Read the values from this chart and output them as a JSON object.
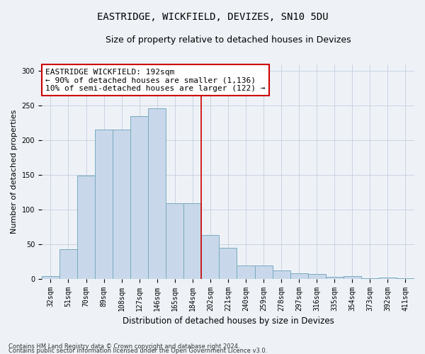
{
  "title": "EASTRIDGE, WICKFIELD, DEVIZES, SN10 5DU",
  "subtitle": "Size of property relative to detached houses in Devizes",
  "xlabel": "Distribution of detached houses by size in Devizes",
  "ylabel": "Number of detached properties",
  "footnote1": "Contains HM Land Registry data © Crown copyright and database right 2024.",
  "footnote2": "Contains public sector information licensed under the Open Government Licence v3.0.",
  "categories": [
    "32sqm",
    "51sqm",
    "70sqm",
    "89sqm",
    "108sqm",
    "127sqm",
    "146sqm",
    "165sqm",
    "184sqm",
    "202sqm",
    "221sqm",
    "240sqm",
    "259sqm",
    "278sqm",
    "297sqm",
    "316sqm",
    "335sqm",
    "354sqm",
    "373sqm",
    "392sqm",
    "411sqm"
  ],
  "values": [
    4,
    43,
    149,
    215,
    215,
    235,
    246,
    109,
    109,
    63,
    45,
    19,
    19,
    12,
    8,
    7,
    3,
    4,
    1,
    2,
    1
  ],
  "bar_color": "#c8d8ea",
  "bar_edge_color": "#7aaabf",
  "vline_x_index": 8,
  "vline_color": "#cc0000",
  "annotation_text": "EASTRIDGE WICKFIELD: 192sqm\n← 90% of detached houses are smaller (1,136)\n10% of semi-detached houses are larger (122) →",
  "annotation_box_color": "white",
  "annotation_box_edge_color": "#cc0000",
  "bg_color": "#eef2f7",
  "grid_color": "#c5cfe0",
  "ylim": [
    0,
    310
  ],
  "yticks": [
    0,
    50,
    100,
    150,
    200,
    250,
    300
  ],
  "title_fontsize": 10,
  "subtitle_fontsize": 9,
  "tick_fontsize": 7,
  "ylabel_fontsize": 8,
  "xlabel_fontsize": 8.5,
  "annotation_fontsize": 8,
  "footnote_fontsize": 6
}
